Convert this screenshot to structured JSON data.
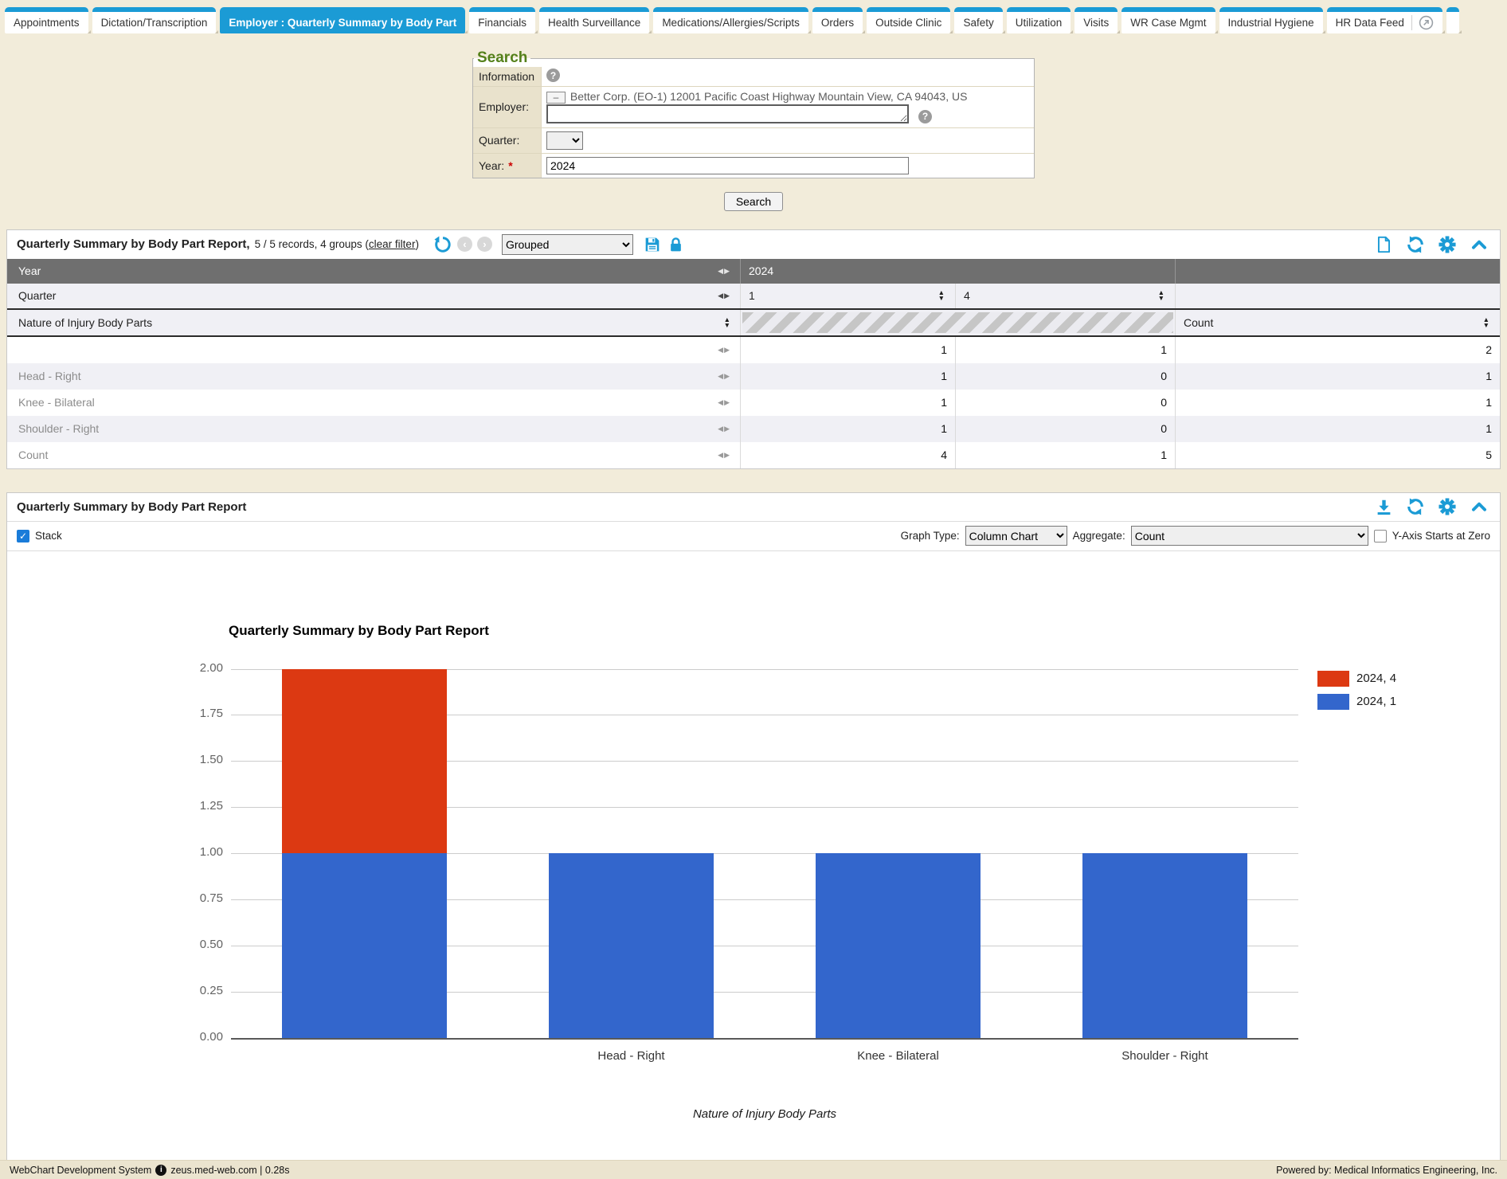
{
  "tabs": {
    "items": [
      {
        "label": "Appointments",
        "active": false
      },
      {
        "label": "Dictation/Transcription",
        "active": false
      },
      {
        "label": "Employer : Quarterly Summary by Body Part",
        "active": true
      },
      {
        "label": "Financials",
        "active": false
      },
      {
        "label": "Health Surveillance",
        "active": false
      },
      {
        "label": "Medications/Allergies/Scripts",
        "active": false
      },
      {
        "label": "Orders",
        "active": false
      },
      {
        "label": "Outside Clinic",
        "active": false
      },
      {
        "label": "Safety",
        "active": false
      },
      {
        "label": "Utilization",
        "active": false
      },
      {
        "label": "Visits",
        "active": false
      },
      {
        "label": "WR Case Mgmt",
        "active": false
      },
      {
        "label": "Industrial Hygiene",
        "active": false
      },
      {
        "label": "HR Data Feed",
        "active": false,
        "has_popout_icon": true
      }
    ]
  },
  "search": {
    "legend": "Search",
    "info_label": "Information",
    "employer_label": "Employer:",
    "collapse_button": "–",
    "employer_selected": "Better Corp. (EO-1) 12001 Pacific Coast Highway Mountain View, CA 94043, US",
    "employer_input_value": "",
    "quarter_label": "Quarter:",
    "quarter_value": "",
    "year_label": "Year:",
    "required_marker": "*",
    "year_value": "2024",
    "search_button": "Search"
  },
  "grid_panel": {
    "title": "Quarterly Summary by Body Part Report,",
    "records_prefix": "5 / 5 records, 4 groups (",
    "clear_filter": "clear filter",
    "records_suffix": ")",
    "view_select_value": "Grouped",
    "header": {
      "year_label": "Year",
      "year_value": "2024",
      "quarter_label": "Quarter",
      "quarter_values": [
        "1",
        "4"
      ],
      "body_parts_label": "Nature of Injury Body Parts",
      "count_label": "Count"
    },
    "rows": [
      {
        "label": "",
        "q1": "1",
        "q4": "1",
        "count": "2"
      },
      {
        "label": "Head - Right",
        "q1": "1",
        "q4": "0",
        "count": "1"
      },
      {
        "label": "Knee - Bilateral",
        "q1": "1",
        "q4": "0",
        "count": "1"
      },
      {
        "label": "Shoulder - Right",
        "q1": "1",
        "q4": "0",
        "count": "1"
      },
      {
        "label": "Count",
        "q1": "4",
        "q4": "1",
        "count": "5"
      }
    ]
  },
  "chart_panel": {
    "title": "Quarterly Summary by Body Part Report",
    "stack_label": "Stack",
    "stack_checked": true,
    "graph_type_label": "Graph Type:",
    "graph_type_value": "Column Chart",
    "aggregate_label": "Aggregate:",
    "aggregate_value": "Count",
    "yaxis_zero_label": "Y-Axis Starts at Zero",
    "yaxis_zero_checked": false,
    "chart_data": {
      "type": "bar",
      "stacked": true,
      "title": "Quarterly Summary by Body Part Report",
      "xlabel": "Nature of Injury Body Parts",
      "ylabel": "",
      "categories": [
        "",
        "Head - Right",
        "Knee - Bilateral",
        "Shoulder - Right"
      ],
      "series": [
        {
          "name": "2024, 4",
          "color": "#DC3912",
          "values": [
            1,
            0,
            0,
            0
          ]
        },
        {
          "name": "2024, 1",
          "color": "#3366CC",
          "values": [
            1,
            1,
            1,
            1
          ]
        }
      ],
      "ylim": [
        0,
        2
      ],
      "yticks": [
        0,
        0.25,
        0.5,
        0.75,
        1,
        1.25,
        1.5,
        1.75,
        2
      ],
      "ytick_labels": [
        "0.00",
        "0.25",
        "0.50",
        "0.75",
        "1.00",
        "1.25",
        "1.50",
        "1.75",
        "2.00"
      ],
      "grid": true,
      "legend_position": "right"
    }
  },
  "footer": {
    "left": "WebChart Development System",
    "host": "zeus.med-web.com | 0.28s",
    "right": "Powered by: Medical Informatics Engineering, Inc."
  }
}
